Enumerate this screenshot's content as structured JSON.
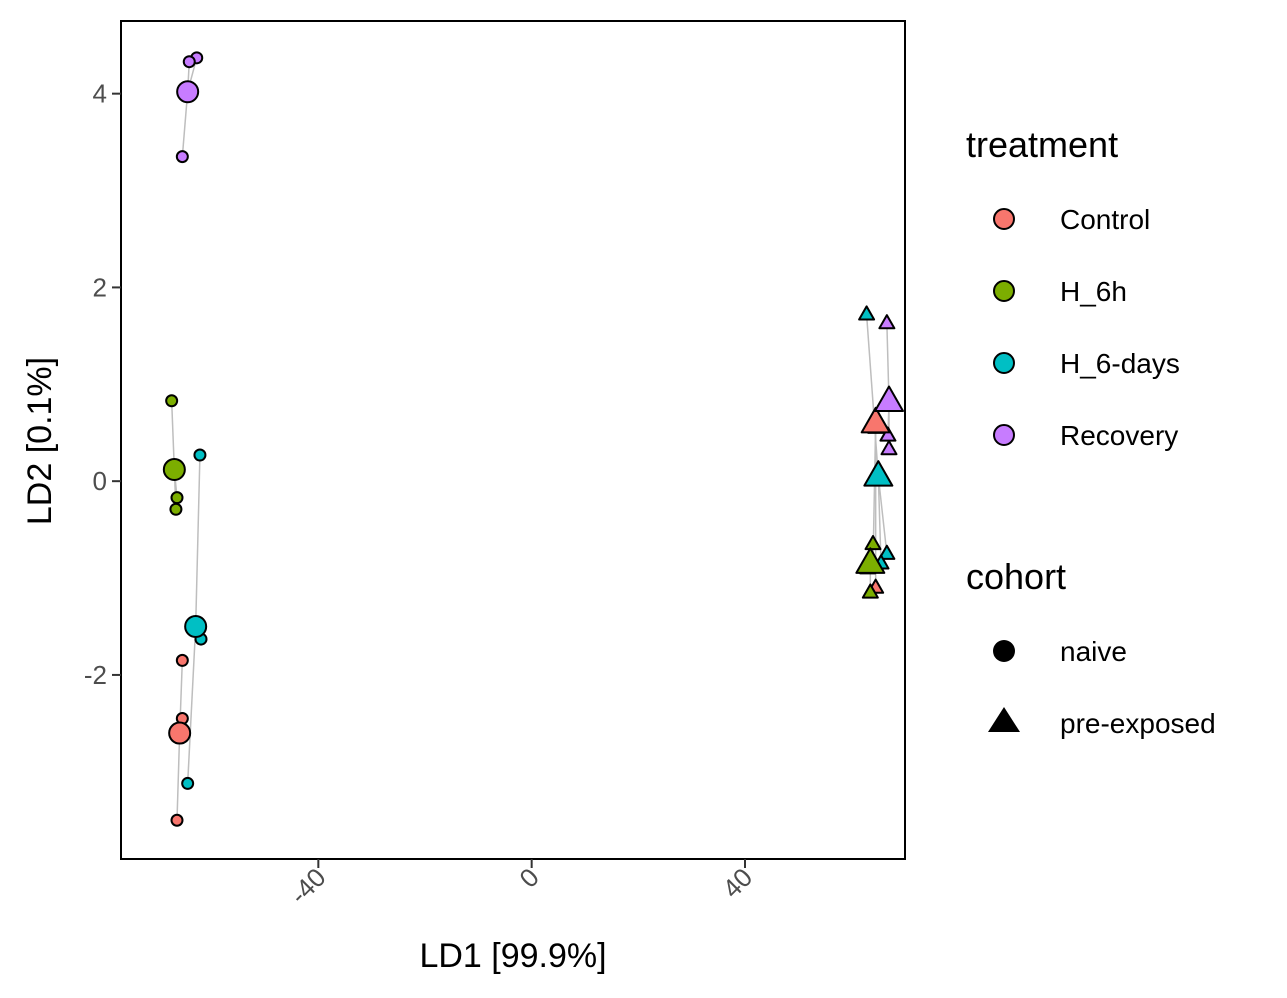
{
  "chart_data": {
    "type": "scatter",
    "xlabel": "LD1 [99.9%]",
    "ylabel": "LD2 [0.1%]",
    "xlim": [
      -77,
      70
    ],
    "ylim": [
      -3.9,
      4.75
    ],
    "x_ticks": [
      -40,
      0,
      40
    ],
    "y_ticks": [
      -2,
      0,
      2,
      4
    ],
    "grid": false,
    "legend_position": "right",
    "colors": {
      "Control": "#F8766D",
      "H_6h": "#7CAE00",
      "H_6-days": "#00BFC4",
      "Recovery": "#C77CFF"
    },
    "legends": [
      {
        "title": "treatment",
        "entries": [
          "Control",
          "H_6h",
          "H_6-days",
          "Recovery"
        ]
      },
      {
        "title": "cohort",
        "entries": [
          "naive",
          "pre-exposed"
        ],
        "shapes": [
          "circle",
          "triangle"
        ]
      }
    ],
    "series": [
      {
        "treatment": "Control",
        "cohort": "naive",
        "centroid": [
          -66,
          -2.6
        ],
        "points": [
          [
            -65.5,
            -1.85
          ],
          [
            -65.5,
            -2.45
          ],
          [
            -66.5,
            -3.5
          ]
        ]
      },
      {
        "treatment": "H_6h",
        "cohort": "naive",
        "centroid": [
          -67,
          0.12
        ],
        "points": [
          [
            -67.5,
            0.83
          ],
          [
            -66.5,
            -0.17
          ],
          [
            -66.7,
            -0.29
          ]
        ]
      },
      {
        "treatment": "H_6-days",
        "cohort": "naive",
        "centroid": [
          -63,
          -1.5
        ],
        "points": [
          [
            -62.2,
            0.27
          ],
          [
            -62,
            -1.63
          ],
          [
            -64.5,
            -3.12
          ]
        ]
      },
      {
        "treatment": "Recovery",
        "cohort": "naive",
        "centroid": [
          -64.5,
          4.02
        ],
        "points": [
          [
            -62.8,
            4.37
          ],
          [
            -64.2,
            4.33
          ],
          [
            -65.5,
            3.35
          ]
        ]
      },
      {
        "treatment": "Control",
        "cohort": "pre-exposed",
        "centroid": [
          64.5,
          0.6
        ],
        "points": [
          [
            64.5,
            0.55
          ],
          [
            64.5,
            -1.1
          ],
          [
            64,
            -0.85
          ]
        ]
      },
      {
        "treatment": "H_6h",
        "cohort": "pre-exposed",
        "centroid": [
          63.5,
          -0.85
        ],
        "points": [
          [
            64,
            -0.65
          ],
          [
            63.5,
            -1.15
          ],
          [
            63,
            -0.9
          ]
        ]
      },
      {
        "treatment": "H_6-days",
        "cohort": "pre-exposed",
        "centroid": [
          65,
          0.05
        ],
        "points": [
          [
            62.8,
            1.72
          ],
          [
            66.6,
            -0.75
          ],
          [
            65.5,
            -0.85
          ]
        ]
      },
      {
        "treatment": "Recovery",
        "cohort": "pre-exposed",
        "centroid": [
          67,
          0.82
        ],
        "points": [
          [
            66.6,
            1.63
          ],
          [
            66.8,
            0.47
          ],
          [
            67,
            0.33
          ]
        ]
      }
    ]
  }
}
